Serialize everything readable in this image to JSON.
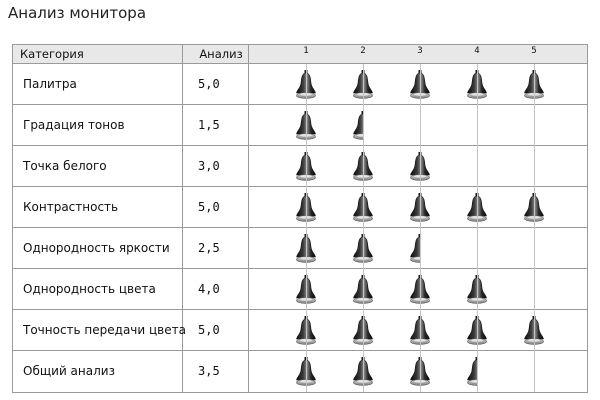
{
  "page": {
    "title": "Анализ монитора"
  },
  "table": {
    "header_category": "Категория",
    "header_score": "Анализ",
    "scale_ticks": [
      "1",
      "2",
      "3",
      "4",
      "5"
    ],
    "max_rating": 5,
    "rating_icon": "bell-rating-icon",
    "rows": [
      {
        "category": "Палитра",
        "score_text": "5,0",
        "rating": 5.0
      },
      {
        "category": "Градация тонов",
        "score_text": "1,5",
        "rating": 1.5
      },
      {
        "category": "Точка белого",
        "score_text": "3,0",
        "rating": 3.0
      },
      {
        "category": "Контрастность",
        "score_text": "5,0",
        "rating": 5.0
      },
      {
        "category": "Однородность яркости",
        "score_text": "2,5",
        "rating": 2.5
      },
      {
        "category": "Однородность цвета",
        "score_text": "4,0",
        "rating": 4.0
      },
      {
        "category": "Точность передачи цвета",
        "score_text": "5,0",
        "rating": 5.0
      },
      {
        "category": "Общий анализ",
        "score_text": "3,5",
        "rating": 3.5
      }
    ]
  },
  "colors": {
    "border": "#9a9a9a",
    "header_bg": "#e8e8e8",
    "icon_dark": "#1a1a1a",
    "icon_light": "#bdbdbd"
  }
}
